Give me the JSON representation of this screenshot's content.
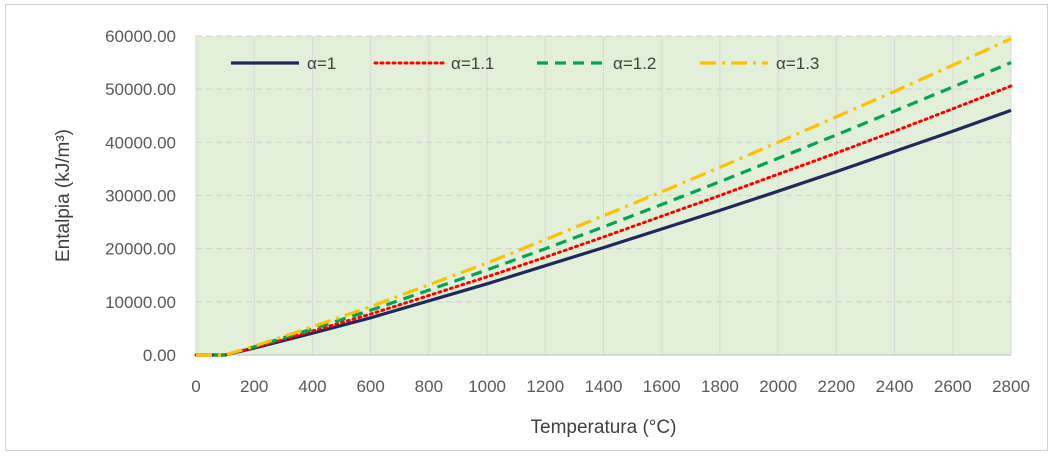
{
  "chart_data": {
    "type": "line",
    "title": "",
    "xlabel": "Temperatura (°C)",
    "ylabel": "Entalpia (kJ/m³)",
    "xlim": [
      0,
      2800
    ],
    "ylim": [
      0,
      60000
    ],
    "x_ticks": [
      "0",
      "200",
      "400",
      "600",
      "800",
      "1000",
      "1200",
      "1400",
      "1600",
      "1800",
      "2000",
      "2200",
      "2400",
      "2600",
      "2800"
    ],
    "y_ticks": [
      "0.00",
      "10000.00",
      "20000.00",
      "30000.00",
      "40000.00",
      "50000.00",
      "60000.00"
    ],
    "grid": true,
    "legend_position": "top-left",
    "plot_background": "#e2efd9",
    "x": [
      0,
      100,
      200,
      400,
      600,
      800,
      1000,
      1200,
      1400,
      1600,
      1800,
      2000,
      2200,
      2400,
      2600,
      2800
    ],
    "series": [
      {
        "name": "α=1",
        "color": "#1f2a5c",
        "dash": "solid",
        "values": [
          0,
          0,
          1300,
          4100,
          7000,
          10200,
          13400,
          16800,
          20200,
          23700,
          27200,
          30800,
          34500,
          38300,
          42100,
          46000
        ]
      },
      {
        "name": "α=1.1",
        "color": "#ff0000",
        "dash": "dotted",
        "values": [
          0,
          0,
          1400,
          4500,
          7700,
          11200,
          14700,
          18400,
          22200,
          26100,
          30000,
          34000,
          38000,
          42100,
          46300,
          50600
        ]
      },
      {
        "name": "α=1.2",
        "color": "#00a651",
        "dash": "dashed",
        "values": [
          0,
          0,
          1550,
          4900,
          8400,
          12200,
          16000,
          20000,
          24100,
          28300,
          32600,
          37000,
          41400,
          45900,
          50400,
          55000
        ]
      },
      {
        "name": "α=1.3",
        "color": "#ffc000",
        "dash": "dashdot",
        "values": [
          0,
          0,
          1650,
          5300,
          9100,
          13200,
          17300,
          21700,
          26200,
          30700,
          35300,
          40000,
          44800,
          49600,
          54500,
          59500
        ]
      }
    ]
  }
}
